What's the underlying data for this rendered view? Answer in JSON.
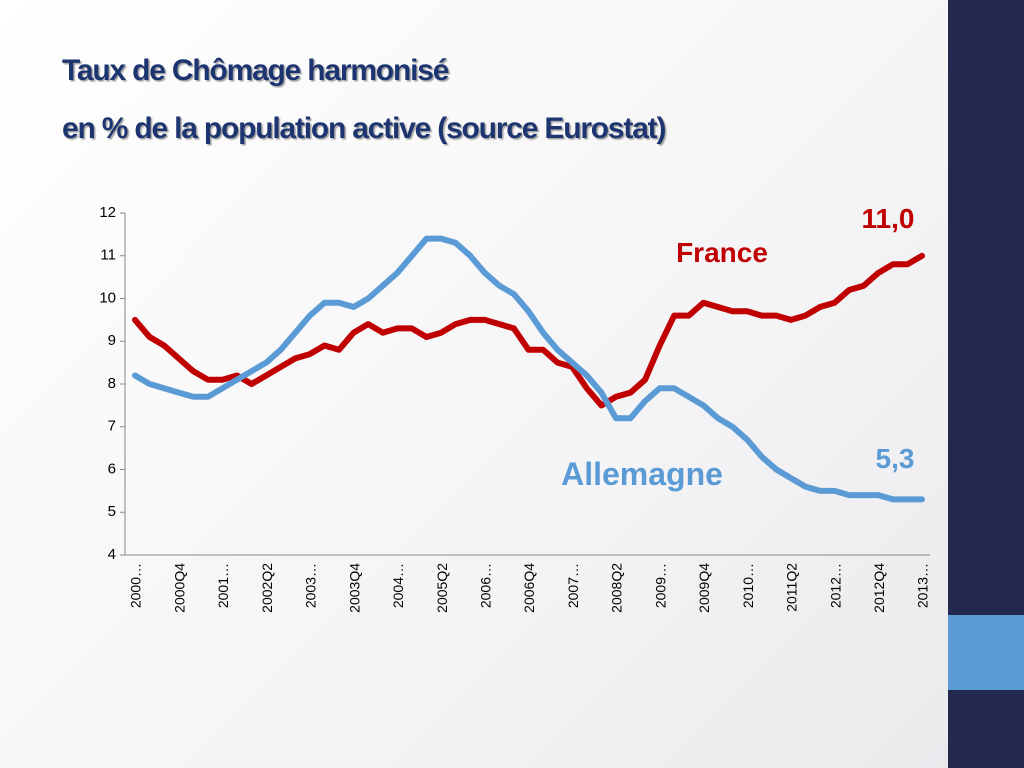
{
  "chart_data": {
    "type": "line",
    "title": "Taux de Chômage harmonisé",
    "subtitle": "en % de la population active (source Eurostat)",
    "categories": [
      "2000…",
      null,
      null,
      "2000Q4",
      null,
      null,
      "2001…",
      null,
      null,
      "2002Q2",
      null,
      null,
      "2003…",
      null,
      null,
      "2003Q4",
      null,
      null,
      "2004…",
      null,
      null,
      "2005Q2",
      null,
      null,
      "2006…",
      null,
      null,
      "2006Q4",
      null,
      null,
      "2007…",
      null,
      null,
      "2008Q2",
      null,
      null,
      "2009…",
      null,
      null,
      "2009Q4",
      null,
      null,
      "2010…",
      null,
      null,
      "2011Q2",
      null,
      null,
      "2012…",
      null,
      null,
      "2012Q4",
      null,
      null,
      "2013…"
    ],
    "series": [
      {
        "name": "France",
        "color": "#c00000",
        "values": [
          9.5,
          9.1,
          8.9,
          8.6,
          8.3,
          8.1,
          8.1,
          8.2,
          8.0,
          8.2,
          8.4,
          8.6,
          8.7,
          8.9,
          8.8,
          9.2,
          9.4,
          9.2,
          9.3,
          9.3,
          9.1,
          9.2,
          9.4,
          9.5,
          9.5,
          9.4,
          9.3,
          8.8,
          8.8,
          8.5,
          8.4,
          7.9,
          7.5,
          7.7,
          7.8,
          8.1,
          8.9,
          9.6,
          9.6,
          9.9,
          9.8,
          9.7,
          9.7,
          9.6,
          9.6,
          9.5,
          9.6,
          9.8,
          9.9,
          10.2,
          10.3,
          10.6,
          10.8,
          10.8,
          11.0
        ],
        "value_labels": [
          null,
          null,
          null,
          null,
          null,
          null,
          null,
          null,
          null,
          null,
          null,
          null,
          null,
          null,
          null,
          null,
          null,
          null,
          null,
          null,
          null,
          null,
          null,
          null,
          null,
          null,
          null,
          null,
          null,
          null,
          null,
          null,
          null,
          null,
          null,
          null,
          null,
          null,
          null,
          null,
          null,
          null,
          null,
          null,
          null,
          null,
          null,
          null,
          null,
          null,
          null,
          null,
          null,
          null,
          "11,0"
        ]
      },
      {
        "name": "Allemagne",
        "color": "#5b9bd5",
        "values": [
          8.2,
          8.0,
          7.9,
          7.8,
          7.7,
          7.7,
          7.9,
          8.1,
          8.3,
          8.5,
          8.8,
          9.2,
          9.6,
          9.9,
          9.9,
          9.8,
          10.0,
          10.3,
          10.6,
          11.0,
          11.4,
          11.4,
          11.3,
          11.0,
          10.6,
          10.3,
          10.1,
          9.7,
          9.2,
          8.8,
          8.5,
          8.2,
          7.8,
          7.2,
          7.2,
          7.6,
          7.9,
          7.9,
          7.7,
          7.5,
          7.2,
          7.0,
          6.7,
          6.3,
          6.0,
          5.8,
          5.6,
          5.5,
          5.5,
          5.4,
          5.4,
          5.4,
          5.3,
          5.3,
          5.3
        ],
        "value_labels": [
          null,
          null,
          null,
          null,
          null,
          null,
          null,
          null,
          null,
          null,
          null,
          null,
          null,
          null,
          null,
          null,
          null,
          null,
          null,
          null,
          null,
          null,
          null,
          null,
          null,
          null,
          null,
          null,
          null,
          null,
          null,
          null,
          null,
          null,
          null,
          null,
          null,
          null,
          null,
          null,
          null,
          null,
          null,
          null,
          null,
          null,
          null,
          null,
          null,
          null,
          null,
          null,
          null,
          null,
          "5,3"
        ]
      }
    ],
    "ylim": [
      4,
      12
    ],
    "yticks": [
      4,
      5,
      6,
      7,
      8,
      9,
      10,
      11,
      12
    ],
    "grid": false
  }
}
